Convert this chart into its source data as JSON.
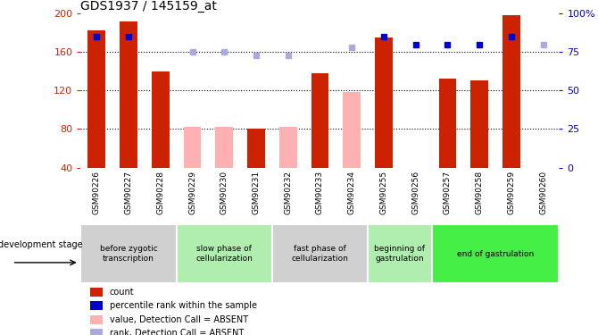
{
  "title": "GDS1937 / 145159_at",
  "samples": [
    "GSM90226",
    "GSM90227",
    "GSM90228",
    "GSM90229",
    "GSM90230",
    "GSM90231",
    "GSM90232",
    "GSM90233",
    "GSM90234",
    "GSM90255",
    "GSM90256",
    "GSM90257",
    "GSM90258",
    "GSM90259",
    "GSM90260"
  ],
  "count_values": [
    182,
    192,
    140,
    null,
    null,
    80,
    null,
    138,
    null,
    175,
    null,
    132,
    130,
    198,
    null
  ],
  "count_absent": [
    null,
    null,
    null,
    82,
    82,
    null,
    82,
    null,
    118,
    null,
    null,
    null,
    null,
    null,
    null
  ],
  "rank_values": [
    85,
    85,
    null,
    null,
    null,
    null,
    null,
    null,
    null,
    85,
    80,
    80,
    80,
    85,
    null
  ],
  "rank_absent": [
    null,
    null,
    null,
    75,
    75,
    73,
    73,
    null,
    78,
    null,
    null,
    null,
    null,
    null,
    80
  ],
  "ylim": [
    40,
    200
  ],
  "y2lim": [
    0,
    100
  ],
  "yticks": [
    40,
    80,
    120,
    160,
    200
  ],
  "y2ticks": [
    0,
    25,
    50,
    75,
    100
  ],
  "grid_lines": [
    80,
    120,
    160
  ],
  "stage_groups": [
    {
      "label": "before zygotic\ntranscription",
      "start": 0,
      "end": 3,
      "color": "#d0d0d0"
    },
    {
      "label": "slow phase of\ncellularization",
      "start": 3,
      "end": 6,
      "color": "#b0eeb0"
    },
    {
      "label": "fast phase of\ncellularization",
      "start": 6,
      "end": 9,
      "color": "#d0d0d0"
    },
    {
      "label": "beginning of\ngastrulation",
      "start": 9,
      "end": 11,
      "color": "#b0eeb0"
    },
    {
      "label": "end of gastrulation",
      "start": 11,
      "end": 15,
      "color": "#44ee44"
    }
  ],
  "count_color": "#cc2200",
  "count_absent_color": "#ffb0b0",
  "rank_color": "#0000cc",
  "rank_absent_color": "#aaaadd",
  "legend_items": [
    {
      "label": "count",
      "color": "#cc2200"
    },
    {
      "label": "percentile rank within the sample",
      "color": "#0000cc"
    },
    {
      "label": "value, Detection Call = ABSENT",
      "color": "#ffb0b0"
    },
    {
      "label": "rank, Detection Call = ABSENT",
      "color": "#aaaadd"
    }
  ]
}
